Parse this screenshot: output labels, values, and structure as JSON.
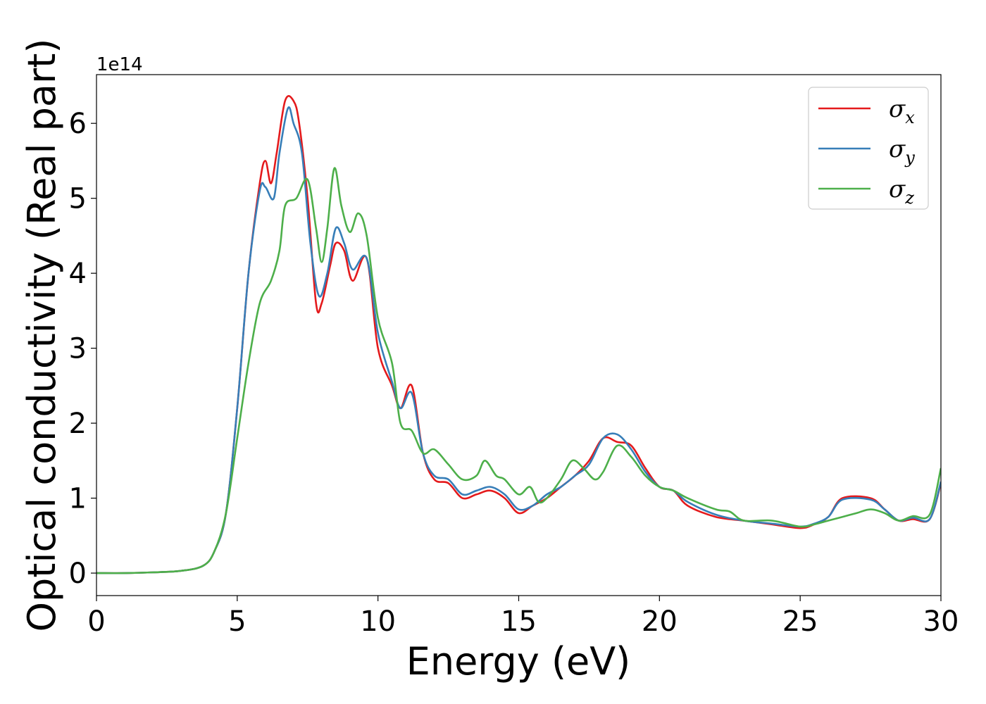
{
  "chart_data": {
    "type": "line",
    "xlabel": "Energy (eV)",
    "ylabel": "Optical conductivity (Real part)",
    "y_offset_label": "1e14",
    "xlim": [
      0,
      30
    ],
    "ylim": [
      -0.3,
      6.65
    ],
    "x_ticks": [
      0,
      5,
      10,
      15,
      20,
      25,
      30
    ],
    "y_ticks": [
      0,
      1,
      2,
      3,
      4,
      5,
      6
    ],
    "grid": false,
    "legend_position": "top-right",
    "series": [
      {
        "name": "σx",
        "legend_base": "σ",
        "legend_sub": "x",
        "color": "#e41a1c",
        "points": [
          [
            0,
            0
          ],
          [
            1,
            0
          ],
          [
            2,
            0.01
          ],
          [
            3,
            0.03
          ],
          [
            3.8,
            0.1
          ],
          [
            4.2,
            0.3
          ],
          [
            4.6,
            0.8
          ],
          [
            5,
            2.2
          ],
          [
            5.4,
            4.0
          ],
          [
            5.8,
            5.2
          ],
          [
            6.0,
            5.5
          ],
          [
            6.2,
            5.2
          ],
          [
            6.4,
            5.6
          ],
          [
            6.7,
            6.3
          ],
          [
            7.0,
            6.3
          ],
          [
            7.2,
            6.0
          ],
          [
            7.5,
            5.0
          ],
          [
            7.8,
            3.6
          ],
          [
            8.0,
            3.6
          ],
          [
            8.3,
            4.1
          ],
          [
            8.5,
            4.4
          ],
          [
            8.8,
            4.3
          ],
          [
            9.1,
            3.9
          ],
          [
            9.6,
            4.2
          ],
          [
            10.0,
            3.0
          ],
          [
            10.5,
            2.5
          ],
          [
            10.8,
            2.2
          ],
          [
            11.2,
            2.5
          ],
          [
            11.6,
            1.6
          ],
          [
            12.0,
            1.25
          ],
          [
            12.5,
            1.2
          ],
          [
            13.0,
            1.0
          ],
          [
            13.5,
            1.05
          ],
          [
            14.0,
            1.1
          ],
          [
            14.5,
            1.0
          ],
          [
            15.0,
            0.8
          ],
          [
            15.5,
            0.9
          ],
          [
            16.0,
            1.0
          ],
          [
            16.5,
            1.15
          ],
          [
            17.0,
            1.3
          ],
          [
            17.5,
            1.5
          ],
          [
            18.0,
            1.8
          ],
          [
            18.5,
            1.75
          ],
          [
            19.0,
            1.7
          ],
          [
            19.5,
            1.4
          ],
          [
            20.0,
            1.15
          ],
          [
            20.5,
            1.1
          ],
          [
            21.0,
            0.9
          ],
          [
            22.0,
            0.75
          ],
          [
            23.0,
            0.7
          ],
          [
            24.0,
            0.65
          ],
          [
            25.0,
            0.6
          ],
          [
            25.5,
            0.65
          ],
          [
            26.0,
            0.75
          ],
          [
            26.5,
            1.0
          ],
          [
            27.5,
            1.0
          ],
          [
            28.0,
            0.85
          ],
          [
            28.5,
            0.7
          ],
          [
            29.0,
            0.72
          ],
          [
            29.6,
            0.72
          ],
          [
            30.0,
            1.2
          ]
        ]
      },
      {
        "name": "σy",
        "legend_base": "σ",
        "legend_sub": "y",
        "color": "#377eb8",
        "points": [
          [
            0,
            0
          ],
          [
            1,
            0
          ],
          [
            2,
            0.01
          ],
          [
            3,
            0.03
          ],
          [
            3.8,
            0.1
          ],
          [
            4.2,
            0.3
          ],
          [
            4.6,
            0.8
          ],
          [
            5,
            2.2
          ],
          [
            5.4,
            4.0
          ],
          [
            5.8,
            5.1
          ],
          [
            6.0,
            5.15
          ],
          [
            6.3,
            5.0
          ],
          [
            6.5,
            5.6
          ],
          [
            6.8,
            6.2
          ],
          [
            7.0,
            6.0
          ],
          [
            7.3,
            5.6
          ],
          [
            7.6,
            4.4
          ],
          [
            7.9,
            3.7
          ],
          [
            8.2,
            4.0
          ],
          [
            8.5,
            4.6
          ],
          [
            8.8,
            4.4
          ],
          [
            9.1,
            4.05
          ],
          [
            9.6,
            4.2
          ],
          [
            10.0,
            3.2
          ],
          [
            10.5,
            2.55
          ],
          [
            10.8,
            2.2
          ],
          [
            11.2,
            2.4
          ],
          [
            11.6,
            1.6
          ],
          [
            12.0,
            1.3
          ],
          [
            12.5,
            1.25
          ],
          [
            13.0,
            1.05
          ],
          [
            13.5,
            1.1
          ],
          [
            14.0,
            1.15
          ],
          [
            14.5,
            1.05
          ],
          [
            15.0,
            0.85
          ],
          [
            15.5,
            0.9
          ],
          [
            16.0,
            1.05
          ],
          [
            16.5,
            1.15
          ],
          [
            17.0,
            1.3
          ],
          [
            17.5,
            1.45
          ],
          [
            18.0,
            1.8
          ],
          [
            18.5,
            1.85
          ],
          [
            19.0,
            1.65
          ],
          [
            19.5,
            1.35
          ],
          [
            20.0,
            1.15
          ],
          [
            20.5,
            1.1
          ],
          [
            21.0,
            0.95
          ],
          [
            22.0,
            0.78
          ],
          [
            23.0,
            0.7
          ],
          [
            24.0,
            0.66
          ],
          [
            25.0,
            0.62
          ],
          [
            25.5,
            0.66
          ],
          [
            26.0,
            0.75
          ],
          [
            26.5,
            0.98
          ],
          [
            27.5,
            0.98
          ],
          [
            28.0,
            0.85
          ],
          [
            28.5,
            0.7
          ],
          [
            29.0,
            0.74
          ],
          [
            29.6,
            0.72
          ],
          [
            30.0,
            1.22
          ]
        ]
      },
      {
        "name": "σz",
        "legend_base": "σ",
        "legend_sub": "z",
        "color": "#4daf4a",
        "points": [
          [
            0,
            0
          ],
          [
            1,
            0
          ],
          [
            2,
            0.01
          ],
          [
            3,
            0.03
          ],
          [
            3.8,
            0.1
          ],
          [
            4.2,
            0.3
          ],
          [
            4.6,
            0.8
          ],
          [
            5,
            1.8
          ],
          [
            5.4,
            2.8
          ],
          [
            5.8,
            3.6
          ],
          [
            6.2,
            3.9
          ],
          [
            6.5,
            4.3
          ],
          [
            6.7,
            4.9
          ],
          [
            7.1,
            5.0
          ],
          [
            7.5,
            5.25
          ],
          [
            7.8,
            4.6
          ],
          [
            8.0,
            4.15
          ],
          [
            8.2,
            4.6
          ],
          [
            8.45,
            5.4
          ],
          [
            8.7,
            4.9
          ],
          [
            9.0,
            4.55
          ],
          [
            9.3,
            4.8
          ],
          [
            9.6,
            4.5
          ],
          [
            10.0,
            3.4
          ],
          [
            10.5,
            2.8
          ],
          [
            10.8,
            2.0
          ],
          [
            11.2,
            1.9
          ],
          [
            11.6,
            1.6
          ],
          [
            12.0,
            1.65
          ],
          [
            12.5,
            1.45
          ],
          [
            13.0,
            1.25
          ],
          [
            13.5,
            1.3
          ],
          [
            13.8,
            1.5
          ],
          [
            14.2,
            1.3
          ],
          [
            14.5,
            1.25
          ],
          [
            15.0,
            1.05
          ],
          [
            15.4,
            1.15
          ],
          [
            15.7,
            0.95
          ],
          [
            16.0,
            1.0
          ],
          [
            16.5,
            1.25
          ],
          [
            16.9,
            1.5
          ],
          [
            17.3,
            1.4
          ],
          [
            17.7,
            1.25
          ],
          [
            18.0,
            1.35
          ],
          [
            18.5,
            1.7
          ],
          [
            19.0,
            1.55
          ],
          [
            19.5,
            1.3
          ],
          [
            20.0,
            1.15
          ],
          [
            20.5,
            1.1
          ],
          [
            21.0,
            1.0
          ],
          [
            22.0,
            0.85
          ],
          [
            22.5,
            0.82
          ],
          [
            23.0,
            0.7
          ],
          [
            24.0,
            0.7
          ],
          [
            25.0,
            0.62
          ],
          [
            25.5,
            0.65
          ],
          [
            26.0,
            0.7
          ],
          [
            26.5,
            0.75
          ],
          [
            27.0,
            0.8
          ],
          [
            27.5,
            0.85
          ],
          [
            28.0,
            0.8
          ],
          [
            28.5,
            0.7
          ],
          [
            29.0,
            0.76
          ],
          [
            29.6,
            0.78
          ],
          [
            30.0,
            1.4
          ]
        ]
      }
    ]
  }
}
